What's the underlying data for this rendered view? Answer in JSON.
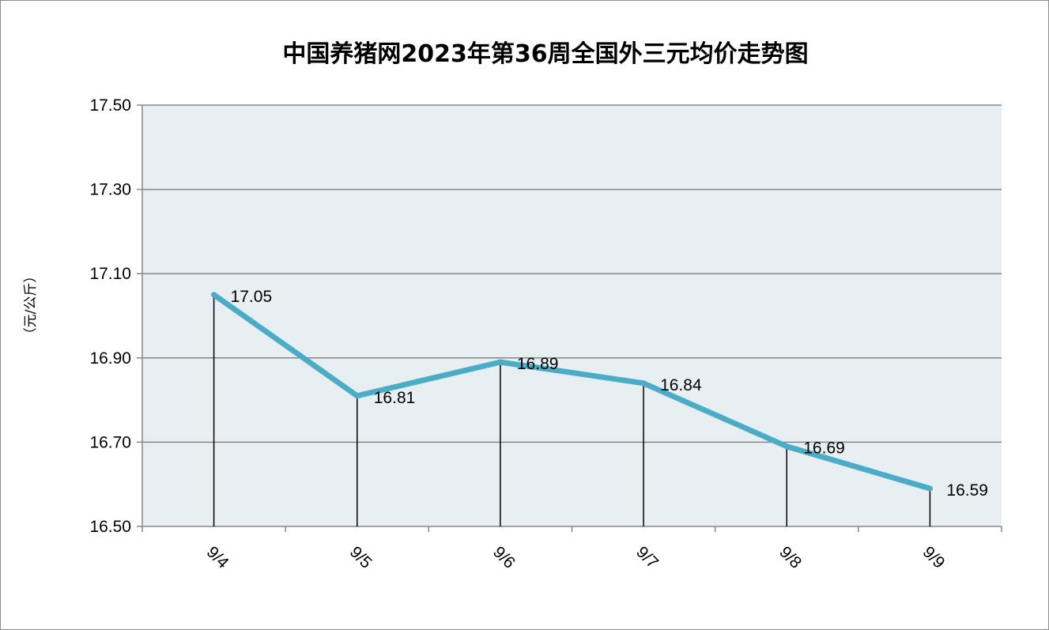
{
  "chart_data": {
    "type": "line",
    "title": "中国养猪网2023年第36周全国外三元均价走势图",
    "ylabel": "（元/公斤）",
    "xlabel": "",
    "categories": [
      "9/4",
      "9/5",
      "9/6",
      "9/7",
      "9/8",
      "9/9"
    ],
    "values": [
      17.05,
      16.81,
      16.89,
      16.84,
      16.69,
      16.59
    ],
    "value_labels": [
      "17.05",
      "16.81",
      "16.89",
      "16.84",
      "16.69",
      "16.59"
    ],
    "ylim": [
      16.5,
      17.5
    ],
    "yticks": [
      "16.50",
      "16.70",
      "16.90",
      "17.10",
      "17.30",
      "17.50"
    ],
    "ytick_values": [
      16.5,
      16.7,
      16.9,
      17.1,
      17.3,
      17.5
    ],
    "grid": true,
    "drop_lines": true,
    "colors": {
      "line": "#4bacc6",
      "plot_bg": "#e8eff3",
      "grid": "#868686"
    }
  }
}
